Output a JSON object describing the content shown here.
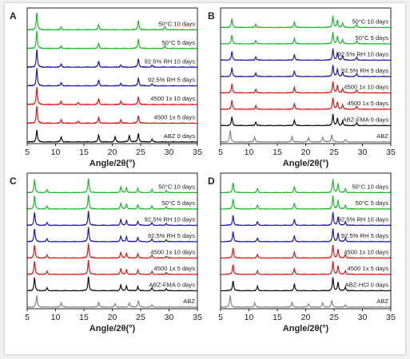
{
  "colors": {
    "green": "#1dbb2b",
    "blue": "#1c1cb4",
    "red": "#e01818",
    "black": "#111111",
    "gray": "#888888"
  },
  "chart_data": [
    {
      "type": "line",
      "panel": "A",
      "xlabel": "Angle/2θ(°)",
      "xlim": [
        5,
        35
      ],
      "xticks": [
        5,
        10,
        15,
        20,
        25,
        30,
        35
      ],
      "series": [
        {
          "name": "50°C 10 days",
          "color": "green",
          "peaks": [
            [
              6.7,
              1.0
            ],
            [
              11.0,
              0.15
            ],
            [
              17.6,
              0.3
            ],
            [
              24.6,
              0.55
            ],
            [
              29.3,
              0.18
            ]
          ]
        },
        {
          "name": "50°C 5 days",
          "color": "green",
          "peaks": [
            [
              6.7,
              1.0
            ],
            [
              11.0,
              0.15
            ],
            [
              17.6,
              0.3
            ],
            [
              24.6,
              0.55
            ],
            [
              29.3,
              0.18
            ]
          ]
        },
        {
          "name": "92.5% RH 10 days",
          "color": "blue",
          "peaks": [
            [
              6.7,
              1.0
            ],
            [
              11.0,
              0.2
            ],
            [
              17.6,
              0.35
            ],
            [
              21.5,
              0.15
            ],
            [
              24.6,
              0.5
            ],
            [
              27.0,
              0.12
            ]
          ]
        },
        {
          "name": "92.5% RH 5 days",
          "color": "blue",
          "peaks": [
            [
              6.7,
              1.0
            ],
            [
              11.0,
              0.2
            ],
            [
              17.6,
              0.35
            ],
            [
              21.5,
              0.15
            ],
            [
              24.6,
              0.45
            ],
            [
              27.0,
              0.12
            ]
          ]
        },
        {
          "name": "4500 1x 10 days",
          "color": "red",
          "peaks": [
            [
              6.7,
              1.0
            ],
            [
              11.0,
              0.2
            ],
            [
              14.0,
              0.12
            ],
            [
              17.6,
              0.35
            ],
            [
              21.5,
              0.2
            ],
            [
              24.6,
              0.45
            ]
          ]
        },
        {
          "name": "4500 1x 5 days",
          "color": "red",
          "peaks": [
            [
              6.7,
              1.0
            ],
            [
              11.0,
              0.2
            ],
            [
              14.0,
              0.12
            ],
            [
              17.6,
              0.35
            ],
            [
              21.5,
              0.2
            ],
            [
              24.6,
              0.45
            ]
          ]
        },
        {
          "name": "ABZ 0 days",
          "color": "black",
          "peaks": [
            [
              6.7,
              0.7
            ],
            [
              11.0,
              0.3
            ],
            [
              17.6,
              0.4
            ],
            [
              20.5,
              0.3
            ],
            [
              23.0,
              0.4
            ],
            [
              24.6,
              0.5
            ],
            [
              27.0,
              0.15
            ]
          ]
        }
      ]
    },
    {
      "type": "line",
      "panel": "B",
      "xlabel": "Angle/2θ(°)",
      "xlim": [
        5,
        35
      ],
      "xticks": [
        5,
        10,
        15,
        20,
        25,
        30,
        35
      ],
      "series": [
        {
          "name": "50°C 10 days",
          "color": "green",
          "peaks": [
            [
              7.0,
              0.6
            ],
            [
              11.2,
              0.25
            ],
            [
              18.0,
              0.4
            ],
            [
              24.8,
              0.8
            ],
            [
              25.6,
              0.5
            ],
            [
              26.5,
              0.3
            ],
            [
              29.0,
              0.2
            ]
          ]
        },
        {
          "name": "50°C 5 days",
          "color": "green",
          "peaks": [
            [
              7.0,
              0.6
            ],
            [
              11.2,
              0.25
            ],
            [
              18.0,
              0.4
            ],
            [
              24.8,
              0.8
            ],
            [
              25.6,
              0.5
            ],
            [
              26.5,
              0.3
            ],
            [
              29.0,
              0.2
            ]
          ]
        },
        {
          "name": "92.5% RH 10 days",
          "color": "blue",
          "peaks": [
            [
              7.0,
              0.6
            ],
            [
              11.2,
              0.25
            ],
            [
              18.0,
              0.4
            ],
            [
              24.8,
              0.8
            ],
            [
              25.6,
              0.5
            ],
            [
              26.5,
              0.3
            ],
            [
              29.0,
              0.2
            ]
          ]
        },
        {
          "name": "92.5% RH 5 days",
          "color": "blue",
          "peaks": [
            [
              7.0,
              0.6
            ],
            [
              11.2,
              0.25
            ],
            [
              18.0,
              0.4
            ],
            [
              24.8,
              0.8
            ],
            [
              25.6,
              0.5
            ],
            [
              26.5,
              0.3
            ],
            [
              29.0,
              0.2
            ]
          ]
        },
        {
          "name": "4500 1x 10 days",
          "color": "red",
          "peaks": [
            [
              7.0,
              0.6
            ],
            [
              11.2,
              0.25
            ],
            [
              18.0,
              0.4
            ],
            [
              24.8,
              0.8
            ],
            [
              25.6,
              0.5
            ],
            [
              26.5,
              0.3
            ],
            [
              29.0,
              0.2
            ]
          ]
        },
        {
          "name": "4500 1x 5 days",
          "color": "red",
          "peaks": [
            [
              7.0,
              0.6
            ],
            [
              11.2,
              0.25
            ],
            [
              18.0,
              0.4
            ],
            [
              24.8,
              0.8
            ],
            [
              25.6,
              0.5
            ],
            [
              26.5,
              0.3
            ],
            [
              29.0,
              0.2
            ]
          ]
        },
        {
          "name": "ABZ-FMA 0 days",
          "color": "black",
          "peaks": [
            [
              7.0,
              0.6
            ],
            [
              11.2,
              0.25
            ],
            [
              18.0,
              0.4
            ],
            [
              24.8,
              0.8
            ],
            [
              25.6,
              0.5
            ],
            [
              26.5,
              0.3
            ],
            [
              29.0,
              0.2
            ]
          ]
        },
        {
          "name": "ABZ",
          "color": "gray",
          "peaks": [
            [
              6.7,
              0.8
            ],
            [
              11.0,
              0.35
            ],
            [
              17.6,
              0.4
            ],
            [
              20.5,
              0.3
            ],
            [
              23.0,
              0.35
            ],
            [
              24.6,
              0.5
            ],
            [
              27.0,
              0.15
            ]
          ]
        }
      ]
    },
    {
      "type": "line",
      "panel": "C",
      "xlabel": "Angle/2θ(°)",
      "xlim": [
        5,
        35
      ],
      "xticks": [
        5,
        10,
        15,
        20,
        25,
        30,
        35
      ],
      "series": [
        {
          "name": "50°C 10 days",
          "color": "green",
          "peaks": [
            [
              6.3,
              0.9
            ],
            [
              8.5,
              0.2
            ],
            [
              15.8,
              1.0
            ],
            [
              21.5,
              0.4
            ],
            [
              22.5,
              0.35
            ],
            [
              24.5,
              0.3
            ],
            [
              27.0,
              0.2
            ],
            [
              29.5,
              0.15
            ]
          ]
        },
        {
          "name": "50°C 5 days",
          "color": "green",
          "peaks": [
            [
              6.3,
              0.9
            ],
            [
              8.5,
              0.2
            ],
            [
              15.8,
              1.0
            ],
            [
              21.5,
              0.4
            ],
            [
              22.5,
              0.35
            ],
            [
              24.5,
              0.3
            ],
            [
              27.0,
              0.2
            ],
            [
              29.5,
              0.15
            ]
          ]
        },
        {
          "name": "92.5% RH 10 days",
          "color": "blue",
          "peaks": [
            [
              6.3,
              0.9
            ],
            [
              8.5,
              0.2
            ],
            [
              15.8,
              1.0
            ],
            [
              21.5,
              0.4
            ],
            [
              22.5,
              0.35
            ],
            [
              24.5,
              0.3
            ],
            [
              27.0,
              0.2
            ],
            [
              29.5,
              0.15
            ]
          ]
        },
        {
          "name": "92.5% RH 5 days",
          "color": "blue",
          "peaks": [
            [
              6.3,
              0.9
            ],
            [
              8.5,
              0.2
            ],
            [
              15.8,
              1.0
            ],
            [
              21.5,
              0.4
            ],
            [
              22.5,
              0.35
            ],
            [
              24.5,
              0.3
            ],
            [
              27.0,
              0.2
            ],
            [
              29.5,
              0.15
            ]
          ]
        },
        {
          "name": "4500 1x 10 days",
          "color": "red",
          "peaks": [
            [
              6.3,
              0.9
            ],
            [
              8.5,
              0.2
            ],
            [
              15.8,
              1.0
            ],
            [
              21.5,
              0.4
            ],
            [
              22.5,
              0.35
            ],
            [
              24.5,
              0.3
            ],
            [
              27.0,
              0.2
            ],
            [
              29.5,
              0.15
            ]
          ]
        },
        {
          "name": "4500 1x 5 days",
          "color": "red",
          "peaks": [
            [
              6.3,
              0.9
            ],
            [
              8.5,
              0.2
            ],
            [
              15.8,
              1.0
            ],
            [
              21.5,
              0.4
            ],
            [
              22.5,
              0.35
            ],
            [
              24.5,
              0.3
            ],
            [
              27.0,
              0.2
            ],
            [
              29.5,
              0.15
            ]
          ]
        },
        {
          "name": "ABZ-FMA 0 days",
          "color": "black",
          "peaks": [
            [
              6.3,
              0.9
            ],
            [
              8.5,
              0.2
            ],
            [
              15.8,
              1.0
            ],
            [
              21.5,
              0.4
            ],
            [
              22.5,
              0.35
            ],
            [
              24.5,
              0.3
            ],
            [
              27.0,
              0.2
            ],
            [
              29.5,
              0.15
            ]
          ]
        },
        {
          "name": "ABZ",
          "color": "gray",
          "peaks": [
            [
              6.7,
              0.8
            ],
            [
              11.0,
              0.3
            ],
            [
              17.6,
              0.35
            ],
            [
              20.5,
              0.25
            ],
            [
              23.0,
              0.3
            ],
            [
              24.6,
              0.45
            ],
            [
              27.0,
              0.15
            ]
          ]
        }
      ]
    },
    {
      "type": "line",
      "panel": "D",
      "xlabel": "Angle/2θ(°)",
      "xlim": [
        5,
        35
      ],
      "xticks": [
        5,
        10,
        15,
        20,
        25,
        30,
        35
      ],
      "series": [
        {
          "name": "50°C 10 days",
          "color": "green",
          "peaks": [
            [
              7.2,
              0.7
            ],
            [
              11.5,
              0.25
            ],
            [
              18.0,
              0.4
            ],
            [
              24.8,
              0.9
            ],
            [
              25.7,
              0.6
            ],
            [
              27.0,
              0.25
            ]
          ]
        },
        {
          "name": "50°C 5 days",
          "color": "green",
          "peaks": [
            [
              7.2,
              0.7
            ],
            [
              11.5,
              0.25
            ],
            [
              18.0,
              0.4
            ],
            [
              24.8,
              0.9
            ],
            [
              25.7,
              0.6
            ],
            [
              27.0,
              0.25
            ]
          ]
        },
        {
          "name": "92.5% RH 10 days",
          "color": "blue",
          "peaks": [
            [
              7.2,
              0.7
            ],
            [
              11.5,
              0.25
            ],
            [
              18.0,
              0.4
            ],
            [
              24.8,
              0.9
            ],
            [
              25.7,
              0.6
            ],
            [
              27.0,
              0.25
            ]
          ]
        },
        {
          "name": "92.5% RH 5 days",
          "color": "blue",
          "peaks": [
            [
              7.2,
              0.7
            ],
            [
              11.5,
              0.25
            ],
            [
              18.0,
              0.4
            ],
            [
              24.8,
              0.9
            ],
            [
              25.7,
              0.6
            ],
            [
              27.0,
              0.25
            ]
          ]
        },
        {
          "name": "4500 1x 10 days",
          "color": "red",
          "peaks": [
            [
              7.2,
              0.7
            ],
            [
              11.5,
              0.25
            ],
            [
              18.0,
              0.4
            ],
            [
              24.8,
              0.9
            ],
            [
              25.7,
              0.6
            ],
            [
              27.0,
              0.25
            ]
          ]
        },
        {
          "name": "4500 1x 5 days",
          "color": "red",
          "peaks": [
            [
              7.2,
              0.7
            ],
            [
              11.5,
              0.25
            ],
            [
              18.0,
              0.4
            ],
            [
              24.8,
              0.9
            ],
            [
              25.7,
              0.6
            ],
            [
              27.0,
              0.25
            ]
          ]
        },
        {
          "name": "ABZ-HCl 0 days",
          "color": "black",
          "peaks": [
            [
              7.2,
              0.7
            ],
            [
              11.5,
              0.3
            ],
            [
              18.0,
              0.45
            ],
            [
              24.8,
              0.9
            ],
            [
              25.7,
              0.6
            ],
            [
              27.0,
              0.25
            ]
          ]
        },
        {
          "name": "ABZ",
          "color": "gray",
          "peaks": [
            [
              6.7,
              0.8
            ],
            [
              11.0,
              0.3
            ],
            [
              17.6,
              0.35
            ],
            [
              20.5,
              0.25
            ],
            [
              23.0,
              0.3
            ],
            [
              24.6,
              0.45
            ],
            [
              27.0,
              0.15
            ]
          ]
        }
      ]
    }
  ]
}
